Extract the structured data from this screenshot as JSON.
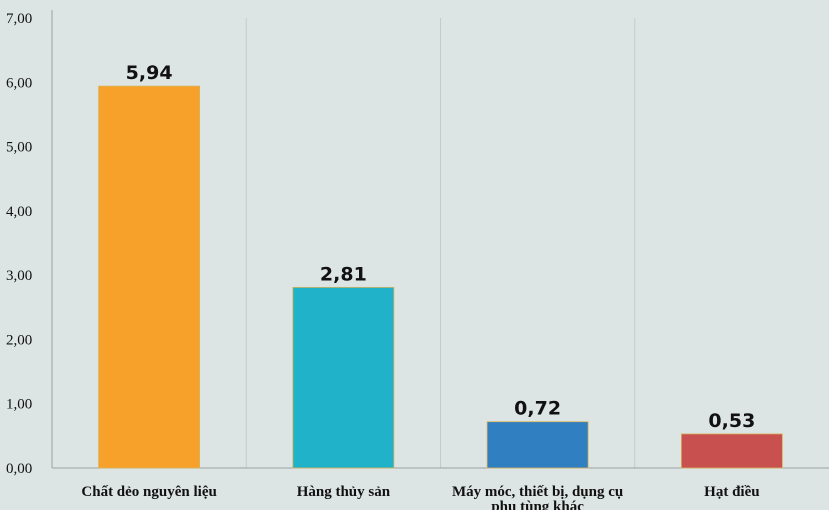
{
  "chart_data": {
    "type": "bar",
    "categories": [
      [
        "Chất dẻo nguyên liệu"
      ],
      [
        "Hàng thủy sản"
      ],
      [
        "Máy móc, thiết bị, dụng cụ",
        "phụ tùng khác"
      ],
      [
        "Hạt điều"
      ]
    ],
    "values": [
      5.94,
      2.81,
      0.72,
      0.53
    ],
    "data_labels": [
      "5,94",
      "2,81",
      "0,72",
      "0,53"
    ],
    "colors": [
      "#f7a12a",
      "#20b2c9",
      "#2f7fc1",
      "#c8504f"
    ],
    "y_ticks": [
      "0,00",
      "1,00",
      "2,00",
      "3,00",
      "4,00",
      "5,00",
      "6,00",
      "7,00"
    ],
    "ylim": [
      0,
      7
    ],
    "grid": "vertical separators only",
    "title": "",
    "xlabel": "",
    "ylabel": ""
  }
}
